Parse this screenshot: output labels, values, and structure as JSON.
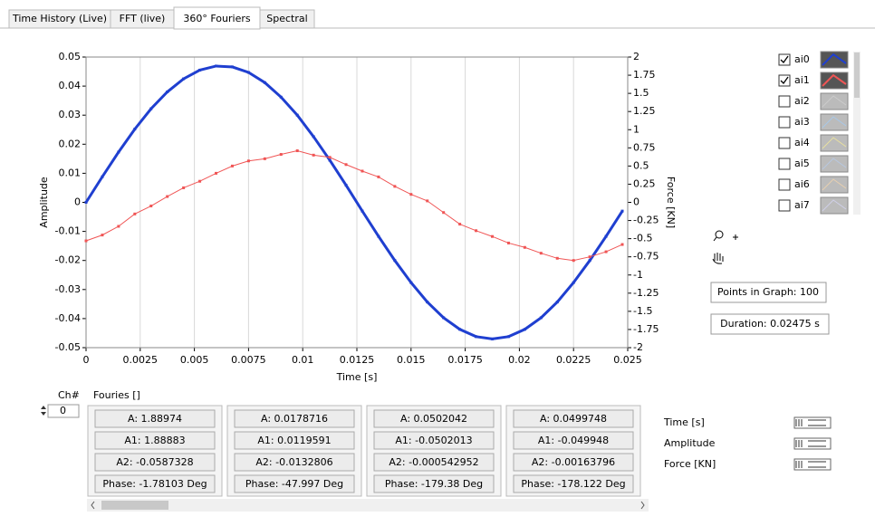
{
  "tabs": [
    {
      "label": "Time History (Live)",
      "active": false
    },
    {
      "label": "FFT (live)",
      "active": false
    },
    {
      "label": "360° Fouriers",
      "active": true
    },
    {
      "label": "Spectral",
      "active": false
    }
  ],
  "chart_data": {
    "type": "line",
    "xlabel": "Time [s]",
    "ylabel": "Amplitude",
    "y2label": "Force [KN]",
    "x": [
      0,
      0.00075,
      0.0015,
      0.00225,
      0.003,
      0.00375,
      0.0045,
      0.00525,
      0.006,
      0.00675,
      0.0075,
      0.00825,
      0.009,
      0.00975,
      0.0105,
      0.01125,
      0.012,
      0.01275,
      0.0135,
      0.01425,
      0.015,
      0.01575,
      0.0165,
      0.01725,
      0.018,
      0.01875,
      0.0195,
      0.02025,
      0.021,
      0.02175,
      0.0225,
      0.02325,
      0.024,
      0.02475
    ],
    "series": [
      {
        "name": "ai0",
        "color": "#1f3fd0",
        "checked": true,
        "values": [
          0,
          0.0088,
          0.0173,
          0.0252,
          0.0322,
          0.038,
          0.0425,
          0.0455,
          0.0469,
          0.0466,
          0.0447,
          0.0412,
          0.0362,
          0.03,
          0.0226,
          0.0145,
          0.0059,
          -0.003,
          -0.0117,
          -0.02,
          -0.0276,
          -0.0343,
          -0.0397,
          -0.0437,
          -0.0462,
          -0.047,
          -0.0462,
          -0.0437,
          -0.0397,
          -0.0343,
          -0.0276,
          -0.02,
          -0.0117,
          -0.003
        ]
      },
      {
        "name": "ai1",
        "color": "#f05555",
        "checked": true,
        "axis": "y2",
        "values": [
          -0.53,
          -0.45,
          -0.33,
          -0.16,
          -0.05,
          0.08,
          0.2,
          0.29,
          0.4,
          0.5,
          0.57,
          0.6,
          0.66,
          0.71,
          0.65,
          0.62,
          0.52,
          0.43,
          0.35,
          0.22,
          0.11,
          0.02,
          -0.14,
          -0.3,
          -0.39,
          -0.47,
          -0.56,
          -0.62,
          -0.7,
          -0.77,
          -0.8,
          -0.75,
          -0.68,
          -0.58
        ]
      }
    ],
    "xlim": [
      0,
      0.025
    ],
    "xticks": [
      0,
      0.0025,
      0.005,
      0.0075,
      0.01,
      0.0125,
      0.015,
      0.0175,
      0.02,
      0.0225,
      0.025
    ],
    "ylim": [
      -0.05,
      0.05
    ],
    "yticks": [
      -0.05,
      -0.04,
      -0.03,
      -0.02,
      -0.01,
      0,
      0.01,
      0.02,
      0.03,
      0.04,
      0.05
    ],
    "y2lim": [
      -2,
      2
    ],
    "y2ticks": [
      -2,
      -1.75,
      -1.5,
      -1.25,
      -1,
      -0.75,
      -0.5,
      -0.25,
      0,
      0.25,
      0.5,
      0.75,
      1,
      1.25,
      1.5,
      1.75,
      2
    ],
    "grid": "x"
  },
  "other_plots": [
    {
      "name": "ai2",
      "checked": false,
      "color": "#cccccc"
    },
    {
      "name": "ai3",
      "checked": false,
      "color": "#a8c8e8"
    },
    {
      "name": "ai4",
      "checked": false,
      "color": "#e8e0a0"
    },
    {
      "name": "ai5",
      "checked": false,
      "color": "#b8c8e0"
    },
    {
      "name": "ai6",
      "checked": false,
      "color": "#e8d0b0"
    },
    {
      "name": "ai7",
      "checked": false,
      "color": "#d0d0e8"
    }
  ],
  "points_in_graph": "Points in Graph: 100",
  "duration": "Duration: 0.02475 s",
  "channel": {
    "label": "Ch#",
    "value": "0"
  },
  "fouriers_label": "Fouries []",
  "fouriers": [
    [
      "A: 1.88974",
      "A1: 1.88883",
      "A2: -0.0587328",
      "Phase: -1.78103 Deg"
    ],
    [
      "A: 0.0178716",
      "A1: 0.0119591",
      "A2: -0.0132806",
      "Phase: -47.997 Deg"
    ],
    [
      "A: 0.0502042",
      "A1: -0.0502013",
      "A2: -0.000542952",
      "Phase: -179.38 Deg"
    ],
    [
      "A: 0.0499748",
      "A1: -0.049948",
      "A2: -0.00163796",
      "Phase: -178.122 Deg"
    ]
  ],
  "scale_legend": [
    "Time [s]",
    "Amplitude",
    "Force [KN]"
  ]
}
